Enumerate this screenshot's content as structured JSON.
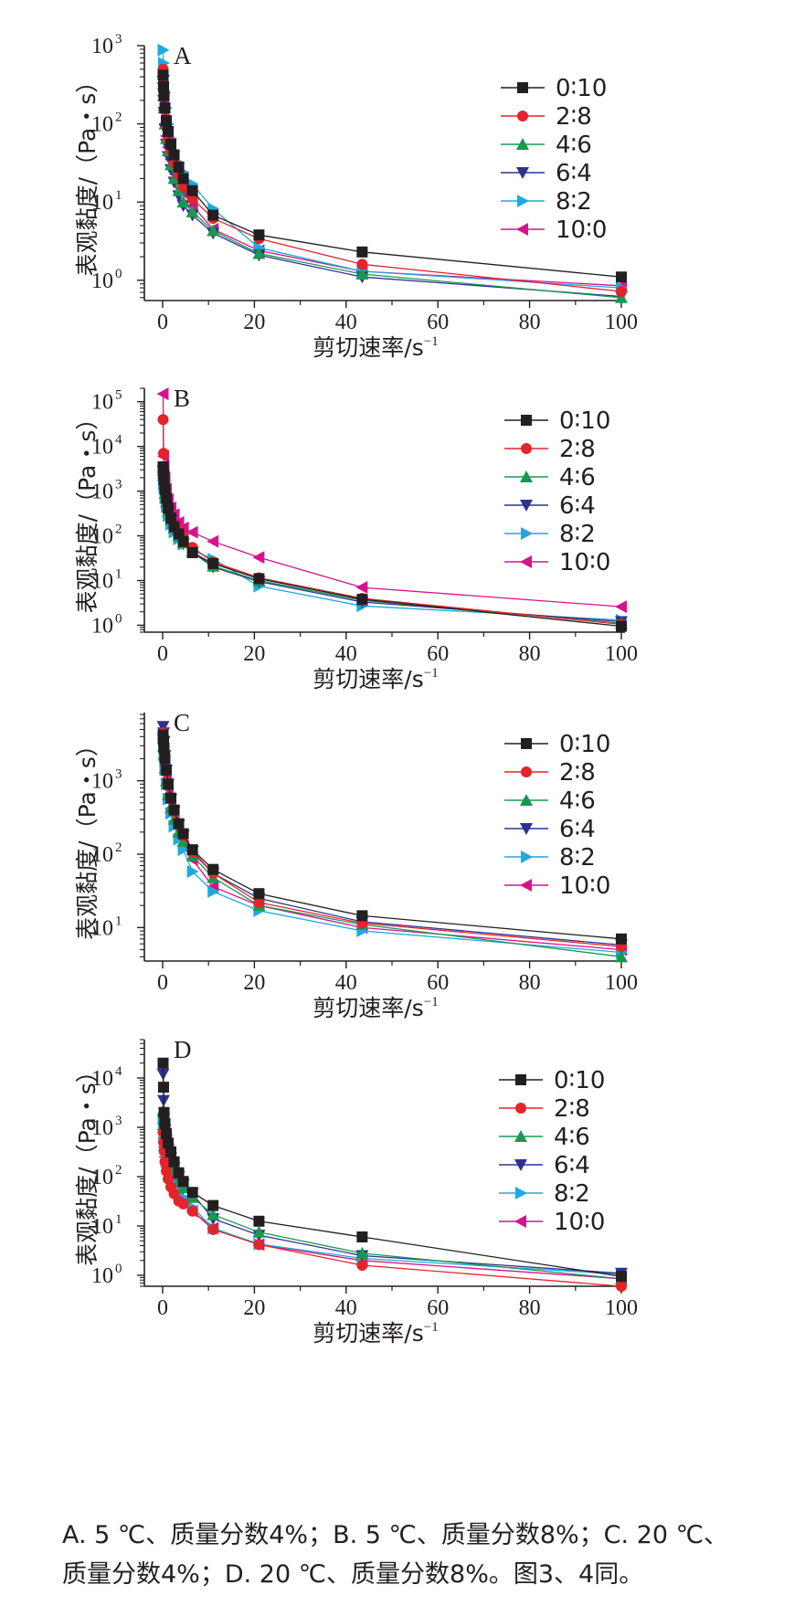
{
  "series_styles": [
    {
      "name": "0∶10",
      "color": "#231f20",
      "marker": "square"
    },
    {
      "name": "2∶8",
      "color": "#e3242b",
      "marker": "circle"
    },
    {
      "name": "4∶6",
      "color": "#1a9850",
      "marker": "triangle-up"
    },
    {
      "name": "6∶4",
      "color": "#2e3192",
      "marker": "triangle-down"
    },
    {
      "name": "8∶2",
      "color": "#1fa9e1",
      "marker": "triangle-right"
    },
    {
      "name": "10∶0",
      "color": "#d6138c",
      "marker": "triangle-left"
    }
  ],
  "chart_data": [
    {
      "type": "line",
      "panel_label": "A",
      "log_y": true,
      "xlabel": "剪切速率/s",
      "xlabel_exponent": "−1",
      "ylabel": "表观黏度/（Pa・s）",
      "xlim": [
        0,
        100
      ],
      "ylim": [
        0.55,
        1000
      ],
      "xticks": [
        "0",
        "20",
        "40",
        "60",
        "80",
        "100"
      ],
      "yticks": [
        {
          "base": "10",
          "exp": "0",
          "value": 1
        },
        {
          "base": "10",
          "exp": "1",
          "value": 10
        },
        {
          "base": "10",
          "exp": "2",
          "value": 100
        },
        {
          "base": "10",
          "exp": "3",
          "value": 1000
        }
      ],
      "x": [
        0.1,
        0.2,
        0.3,
        0.5,
        0.8,
        1.2,
        1.8,
        2.5,
        3.5,
        4.5,
        6.5,
        11,
        21,
        43.5,
        100
      ],
      "series": [
        {
          "name": "0∶10",
          "values": [
            420,
            300,
            230,
            160,
            110,
            80,
            55,
            40,
            28,
            20,
            14,
            6.8,
            3.8,
            2.3,
            1.1
          ]
        },
        {
          "name": "2∶8",
          "values": [
            500,
            330,
            240,
            150,
            95,
            65,
            45,
            32,
            22,
            16,
            11,
            6.2,
            3.4,
            1.6,
            0.72
          ]
        },
        {
          "name": "4∶6",
          "values": [
            380,
            230,
            160,
            100,
            65,
            45,
            30,
            20,
            14,
            10,
            7.5,
            4.3,
            2.2,
            1.2,
            0.6
          ]
        },
        {
          "name": "6∶4",
          "values": [
            350,
            200,
            140,
            85,
            55,
            38,
            26,
            18,
            12,
            9,
            6.8,
            4,
            2.1,
            1.1,
            0.62
          ]
        },
        {
          "name": "8∶2",
          "values": [
            880,
            600,
            420,
            250,
            160,
            100,
            65,
            45,
            32,
            24,
            17,
            8.2,
            2.6,
            1.3,
            0.8
          ]
        },
        {
          "name": "10∶0",
          "values": [
            280,
            200,
            150,
            100,
            70,
            50,
            35,
            25,
            18,
            13,
            9,
            4.5,
            2.4,
            1.3,
            0.85
          ]
        }
      ]
    },
    {
      "type": "line",
      "panel_label": "B",
      "log_y": true,
      "xlabel": "剪切速率/s",
      "xlabel_exponent": "−1",
      "ylabel": "表观黏度/（Pa・s）",
      "xlim": [
        0,
        100
      ],
      "ylim": [
        0.7,
        200000
      ],
      "xticks": [
        "0",
        "20",
        "40",
        "60",
        "80",
        "100"
      ],
      "yticks": [
        {
          "base": "10",
          "exp": "0",
          "value": 1
        },
        {
          "base": "10",
          "exp": "1",
          "value": 10
        },
        {
          "base": "10",
          "exp": "2",
          "value": 100
        },
        {
          "base": "10",
          "exp": "3",
          "value": 1000
        },
        {
          "base": "10",
          "exp": "4",
          "value": 10000
        },
        {
          "base": "10",
          "exp": "5",
          "value": 100000
        }
      ],
      "x": [
        0.1,
        0.2,
        0.3,
        0.5,
        0.8,
        1.2,
        1.8,
        2.5,
        3.5,
        4.5,
        6.5,
        11,
        21,
        43.5,
        100
      ],
      "series": [
        {
          "name": "0∶10",
          "values": [
            3500,
            2500,
            1800,
            1100,
            700,
            420,
            250,
            160,
            110,
            75,
            42,
            24,
            11,
            3.8,
            0.95
          ]
        },
        {
          "name": "2∶8",
          "values": [
            40000,
            7000,
            3000,
            1500,
            800,
            480,
            300,
            180,
            140,
            100,
            55,
            26,
            11.5,
            4,
            1.05
          ]
        },
        {
          "name": "4∶6",
          "values": [
            3000,
            2200,
            1500,
            900,
            580,
            360,
            230,
            150,
            100,
            70,
            45,
            21,
            10,
            3.6,
            1.1
          ]
        },
        {
          "name": "6∶4",
          "values": [
            2800,
            2000,
            1400,
            850,
            550,
            340,
            220,
            140,
            95,
            66,
            43,
            20,
            9.5,
            3.3,
            1.2
          ]
        },
        {
          "name": "8∶2",
          "values": [
            2500,
            1700,
            1200,
            700,
            450,
            280,
            180,
            120,
            85,
            65,
            48,
            30,
            7.5,
            2.7,
            1.3
          ]
        },
        {
          "name": "10∶0",
          "values": [
            150000,
            6000,
            3500,
            2000,
            1100,
            650,
            420,
            300,
            200,
            150,
            120,
            75,
            33,
            7,
            2.6
          ]
        }
      ]
    },
    {
      "type": "line",
      "panel_label": "C",
      "log_y": true,
      "xlabel": "剪切速率/s",
      "xlabel_exponent": "−1",
      "ylabel": "表观黏度/（Pa・s）",
      "xlim": [
        0,
        100
      ],
      "ylim": [
        3.5,
        8500
      ],
      "xticks": [
        "0",
        "20",
        "40",
        "60",
        "80",
        "100"
      ],
      "yticks": [
        {
          "base": "10",
          "exp": "1",
          "value": 10
        },
        {
          "base": "10",
          "exp": "2",
          "value": 100
        },
        {
          "base": "10",
          "exp": "3",
          "value": 1000
        }
      ],
      "x": [
        0.1,
        0.2,
        0.3,
        0.5,
        0.8,
        1.2,
        1.8,
        2.5,
        3.5,
        4.5,
        6.5,
        11,
        21,
        43.5,
        100
      ],
      "series": [
        {
          "name": "0∶10",
          "values": [
            4200,
            3500,
            2800,
            2000,
            1400,
            900,
            580,
            400,
            260,
            190,
            115,
            62,
            29,
            14.5,
            7
          ]
        },
        {
          "name": "2∶8",
          "values": [
            4500,
            3600,
            2800,
            1900,
            1300,
            850,
            560,
            380,
            250,
            180,
            105,
            55,
            22,
            11.5,
            5.5
          ]
        },
        {
          "name": "4∶6",
          "values": [
            3800,
            3000,
            2300,
            1500,
            1000,
            650,
            430,
            300,
            200,
            150,
            95,
            48,
            20,
            11,
            4
          ]
        },
        {
          "name": "6∶4",
          "values": [
            5500,
            4500,
            3400,
            2200,
            1400,
            900,
            560,
            380,
            250,
            180,
            110,
            55,
            25,
            12,
            5.8
          ]
        },
        {
          "name": "8∶2",
          "values": [
            4000,
            3000,
            2200,
            1400,
            900,
            560,
            360,
            240,
            160,
            115,
            58,
            31,
            17,
            9,
            4.6
          ]
        },
        {
          "name": "10∶0",
          "values": [
            4300,
            3300,
            2500,
            1600,
            1050,
            650,
            420,
            280,
            180,
            130,
            85,
            36,
            20,
            10,
            5
          ]
        }
      ]
    },
    {
      "type": "line",
      "panel_label": "D",
      "log_y": true,
      "xlabel": "剪切速率/s",
      "xlabel_exponent": "−1",
      "ylabel": "表观黏度/（Pa・s）",
      "xlim": [
        0,
        100
      ],
      "ylim": [
        0.6,
        60000
      ],
      "xticks": [
        "0",
        "20",
        "40",
        "60",
        "80",
        "100"
      ],
      "yticks": [
        {
          "base": "10",
          "exp": "0",
          "value": 1
        },
        {
          "base": "10",
          "exp": "1",
          "value": 10
        },
        {
          "base": "10",
          "exp": "2",
          "value": 100
        },
        {
          "base": "10",
          "exp": "3",
          "value": 1000
        },
        {
          "base": "10",
          "exp": "4",
          "value": 10000
        }
      ],
      "x": [
        0.1,
        0.2,
        0.3,
        0.5,
        0.8,
        1.2,
        1.8,
        2.5,
        3.5,
        4.5,
        6.5,
        11,
        21,
        43.5,
        100
      ],
      "series": [
        {
          "name": "0∶10",
          "values": [
            20000,
            6500,
            2000,
            1200,
            750,
            480,
            320,
            200,
            120,
            80,
            48,
            26,
            12.5,
            6,
            0.95
          ]
        },
        {
          "name": "2∶8",
          "values": [
            800,
            500,
            330,
            200,
            130,
            90,
            62,
            45,
            32,
            28,
            20,
            8.5,
            4.2,
            1.6,
            0.6
          ]
        },
        {
          "name": "4∶6",
          "values": [
            2200,
            1500,
            1000,
            650,
            420,
            280,
            180,
            120,
            80,
            60,
            38,
            17,
            7.5,
            2.8,
            0.85
          ]
        },
        {
          "name": "6∶4",
          "values": [
            12000,
            3500,
            1500,
            900,
            560,
            360,
            240,
            150,
            100,
            70,
            45,
            14,
            6.5,
            2.5,
            1.1
          ]
        },
        {
          "name": "8∶2",
          "values": [
            1500,
            1000,
            650,
            400,
            260,
            170,
            110,
            75,
            50,
            38,
            24,
            9,
            4.3,
            2.2,
            1.05
          ]
        },
        {
          "name": "10∶0",
          "values": [
            900,
            600,
            400,
            250,
            160,
            110,
            75,
            52,
            38,
            30,
            20,
            9,
            4.2,
            2,
            0.85
          ]
        }
      ]
    }
  ],
  "caption": {
    "line1": "A. 5 ℃、质量分数4%；B. 5 ℃、质量分数8%；C. 20 ℃、",
    "line2": "质量分数4%；D. 20 ℃、质量分数8%。图3、4同。"
  }
}
